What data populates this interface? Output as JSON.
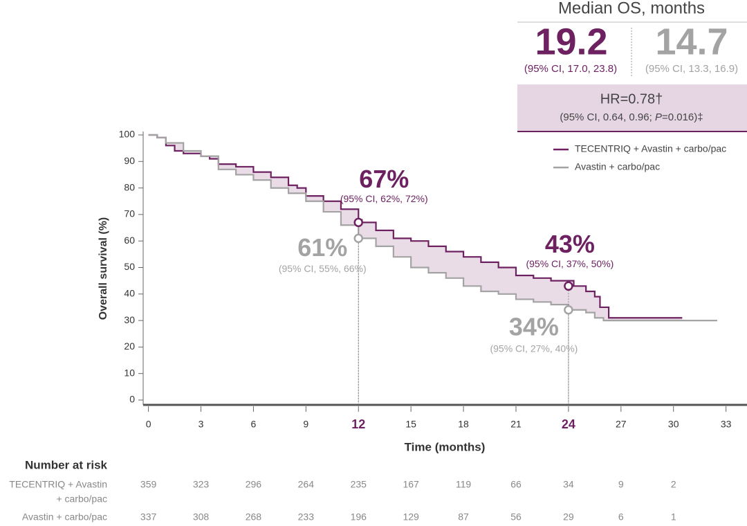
{
  "chart_data": {
    "type": "step",
    "y_label": "Overall survival (%)",
    "x_label": "Time (months)",
    "xlim": [
      -0.3,
      34.2
    ],
    "ylim": [
      0,
      100
    ],
    "xticks": [
      0,
      3,
      6,
      9,
      12,
      15,
      18,
      21,
      24,
      27,
      30,
      33
    ],
    "highlight_xticks": [
      12,
      24
    ],
    "yticks": [
      0,
      10,
      20,
      30,
      40,
      50,
      60,
      70,
      80,
      90,
      100
    ],
    "shade_between": true,
    "shade_color": "#e6d6e3",
    "series": [
      {
        "name": "TECENTRIQ + Avastin + carbo/pac",
        "color": "#6d2160",
        "x": [
          0,
          0.5,
          1,
          1.5,
          2,
          3,
          3.5,
          4,
          5,
          6,
          7,
          8,
          8.5,
          9,
          10,
          11,
          12,
          12.2,
          13,
          14,
          15,
          16,
          17,
          18,
          19,
          20,
          21,
          22,
          23,
          24.3,
          25,
          25.5,
          25.8,
          26.3,
          30.5
        ],
        "values": [
          100,
          99,
          96,
          94,
          93,
          92,
          91,
          89,
          88,
          86,
          84,
          81,
          80,
          77,
          75,
          72,
          68,
          67,
          64,
          61,
          60,
          58,
          56,
          54,
          52,
          50,
          47,
          46,
          45,
          43,
          41,
          39,
          35,
          31,
          31
        ]
      },
      {
        "name": "Avastin + carbo/pac",
        "color": "#a3a3a3",
        "x": [
          0,
          0.5,
          1,
          2,
          3,
          4,
          5,
          6,
          7,
          8,
          9,
          10,
          11,
          12,
          13,
          14,
          15,
          16,
          17,
          18,
          19,
          20,
          21,
          22,
          23,
          24,
          25,
          25.5,
          26,
          32.5
        ],
        "values": [
          100,
          99,
          97,
          94,
          92,
          87,
          85,
          83,
          80,
          78,
          75,
          71,
          66,
          61,
          58,
          54,
          50,
          48,
          46,
          43,
          41,
          40,
          38,
          37,
          36,
          34,
          33,
          31,
          30,
          30
        ]
      }
    ],
    "annotations": [
      {
        "series": 0,
        "x": 12,
        "value": 67,
        "label": "67%",
        "ci": "(95% CI, 62%, 72%)"
      },
      {
        "series": 1,
        "x": 12,
        "value": 61,
        "label": "61%",
        "ci": "(95% CI, 55%, 66%)"
      },
      {
        "series": 0,
        "x": 24,
        "value": 43,
        "label": "43%",
        "ci": "(95% CI, 37%, 50%)"
      },
      {
        "series": 1,
        "x": 24,
        "value": 34,
        "label": "34%",
        "ci": "(95% CI, 27%, 40%)"
      }
    ]
  },
  "median_os": {
    "title": "Median OS, months",
    "arms": [
      {
        "value": 19.2,
        "ci": "(95% CI, 17.0, 23.8)"
      },
      {
        "value": 14.7,
        "ci": "(95% CI, 13.3, 16.9)"
      }
    ],
    "hr": "HR=0.78†",
    "hr_ci": [
      "(95% CI, 0.64, 0.96; ",
      "P",
      "=0.016)‡"
    ]
  },
  "risk_table": {
    "title": "Number at risk",
    "rows": [
      {
        "label": [
          "TECENTRIQ + Avastin",
          "+ carbo/pac"
        ],
        "values": [
          359,
          323,
          296,
          264,
          235,
          167,
          119,
          66,
          34,
          9,
          2
        ]
      },
      {
        "label": [
          "Avastin + carbo/pac"
        ],
        "values": [
          337,
          308,
          268,
          233,
          196,
          129,
          87,
          56,
          29,
          6,
          1
        ]
      }
    ]
  }
}
